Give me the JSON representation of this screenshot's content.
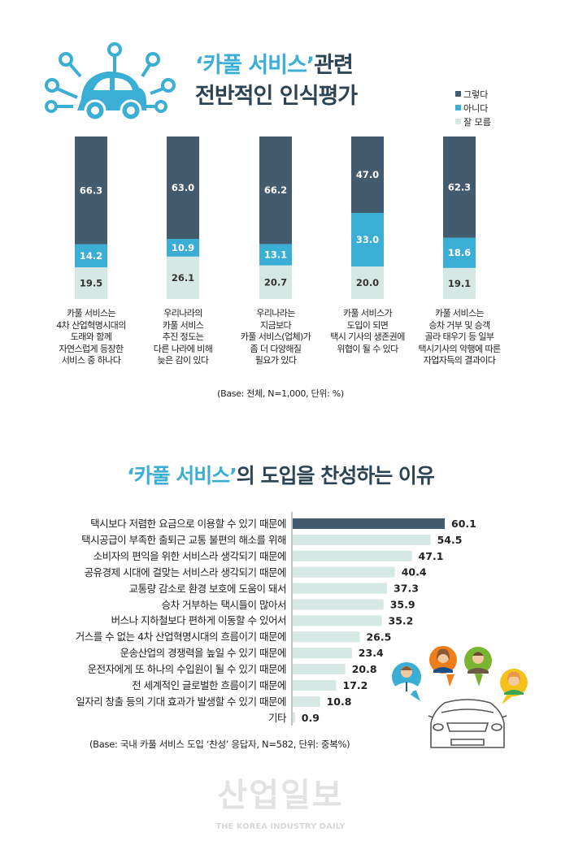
{
  "chart_data": [
    {
      "type": "bar",
      "stacked": true,
      "title_parts": [
        "‘카풀 서비스’",
        "관련",
        "전반적인 인식평가"
      ],
      "categories": [
        "카풀 서비스는\n4차 산업혁명시대의\n도래와 함께\n자연스럽게 등장한\n서비스 중 하나다",
        "우리나라의\n카풀 서비스\n추진 정도는\n다른 나라에 비해\n늦은 감이 있다",
        "우리나라는\n지금보다\n카풀 서비스(업체)가\n좀 더 다양해질\n필요가 있다",
        "카풀 서비스가\n도입이 되면\n택시 기사의 생존권에\n위협이 될 수 있다",
        "카풀 서비스는\n승차 거부 및 승객\n골라 태우기 등 일부\n택시기사의 악행에 따른\n자업자득의 결과이다"
      ],
      "series": [
        {
          "name": "그렇다",
          "color": "#435b6f",
          "values": [
            66.3,
            63.0,
            66.2,
            47.0,
            62.3
          ]
        },
        {
          "name": "아니다",
          "color": "#3aaed5",
          "values": [
            14.2,
            10.9,
            13.1,
            33.0,
            18.6
          ]
        },
        {
          "name": "잘 모름",
          "color": "#d5e8e3",
          "values": [
            19.5,
            26.1,
            20.7,
            20.0,
            19.1
          ]
        }
      ],
      "value_labels": [
        [
          "66.3",
          "63.0",
          "66.2",
          "47.0",
          "62.3"
        ],
        [
          "14.2",
          "10.9",
          "13.1",
          "33.0",
          "18.6"
        ],
        [
          "19.5",
          "26.1",
          "20.7",
          "20.0",
          "19.1"
        ]
      ],
      "ylim": [
        0,
        100
      ],
      "legend": "top-right",
      "note": "(Base:  전체, N=1,000, 단위: %)"
    },
    {
      "type": "bar",
      "orientation": "horizontal",
      "title_parts": [
        "‘카풀 서비스’",
        "의 도입을 찬성하는 이유"
      ],
      "categories": [
        "택시보다 저렴한 요금으로 이용할 수 있기 때문에",
        "택시공급이 부족한 출퇴근 교통 불편의 해소를 위해",
        "소비자의 편익을 위한 서비스라 생각되기 때문에",
        "공유경제 시대에 걸맞는 서비스라 생각되기 때문에",
        "교통량 감소로 환경 보호에 도움이 돼서",
        "승차 거부하는 택시들이 많아서",
        "버스나 지하철보다 편하게 이동할 수 있어서",
        "거스를 수 없는 4차 산업혁명시대의 흐름이기 때문에",
        "운송산업의 경쟁력을 높일 수 있기 때문에",
        "운전자에게 또 하나의 수입원이 될 수 있기 때문에",
        "전 세계적인 글로벌한 흐름이기 때문에",
        "일자리 창출 등의 기대 효과가 발생할 수 있기 때문에",
        "기타"
      ],
      "values": [
        60.1,
        54.5,
        47.1,
        40.4,
        37.3,
        35.9,
        35.2,
        26.5,
        23.4,
        20.8,
        17.2,
        10.8,
        0.9
      ],
      "value_labels": [
        "60.1",
        "54.5",
        "47.1",
        "40.4",
        "37.3",
        "35.9",
        "35.2",
        "26.5",
        "23.4",
        "20.8",
        "17.2",
        "10.8",
        "0.9"
      ],
      "highlight_color": "#435b6f",
      "bar_color": "#d5e8e3",
      "note": "(Base:  국내 카풀 서비스 도입 ‘찬성’ 응답자, N=582, 단위: 중복%)"
    }
  ],
  "watermark": {
    "logo": "산업일보",
    "sub": "THE KOREA INDUSTRY DAILY"
  },
  "icons": [
    "car-network-icon",
    "person-avatar-icons",
    "car-front-icon"
  ]
}
